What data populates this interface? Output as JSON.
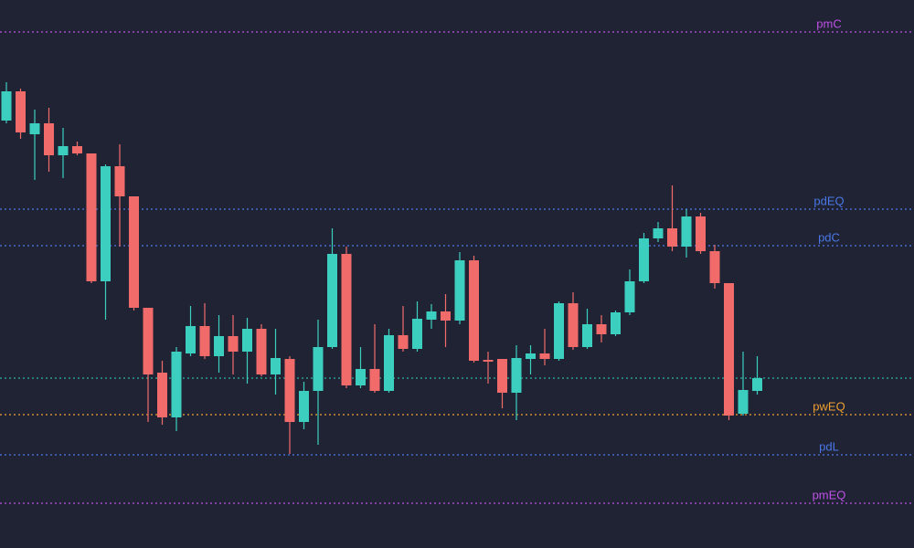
{
  "chart_data": {
    "type": "candlestick",
    "ylim": [
      0,
      600
    ],
    "up_color": "#3ccfbf",
    "down_color": "#f26b6b",
    "open": [
      468,
      500,
      453,
      465,
      430,
      440,
      432,
      292,
      418,
      385,
      263,
      192,
      143,
      213,
      243,
      210,
      232,
      215,
      240,
      190,
      207,
      138,
      172,
      220,
      322,
      178,
      196,
      172,
      233,
      218,
      250,
      259,
      249,
      315,
      206,
      207,
      170,
      207,
      213,
      207,
      268,
      220,
      245,
      234,
      258,
      292,
      339,
      350,
      330,
      363,
      325,
      290,
      147,
      172
    ],
    "high": [
      510,
      503,
      480,
      482,
      460,
      445,
      432,
      420,
      442,
      385,
      263,
      205,
      220,
      265,
      268,
      255,
      255,
      252,
      245,
      240,
      210,
      182,
      250,
      350,
      330,
      220,
      245,
      240,
      265,
      270,
      267,
      278,
      324,
      320,
      215,
      207,
      222,
      222,
      240,
      270,
      280,
      262,
      255,
      260,
      305,
      345,
      357,
      397,
      371,
      367,
      332,
      290,
      215,
      210
    ],
    "low": [
      465,
      448,
      403,
      412,
      405,
      430,
      290,
      250,
      330,
      260,
      138,
      135,
      128,
      210,
      207,
      192,
      190,
      180,
      188,
      168,
      103,
      130,
      113,
      218,
      175,
      175,
      170,
      170,
      215,
      215,
      240,
      220,
      245,
      203,
      180,
      153,
      140,
      190,
      200,
      205,
      217,
      218,
      225,
      232,
      255,
      290,
      335,
      325,
      318,
      322,
      284,
      140,
      145,
      168
    ],
    "close": [
      500,
      455,
      465,
      430,
      440,
      432,
      292,
      418,
      385,
      263,
      190,
      143,
      215,
      243,
      210,
      232,
      215,
      240,
      190,
      208,
      138,
      172,
      220,
      322,
      178,
      196,
      172,
      233,
      218,
      251,
      259,
      249,
      315,
      205,
      204,
      170,
      208,
      213,
      207,
      268,
      220,
      245,
      234,
      258,
      292,
      339,
      350,
      330,
      363,
      325,
      290,
      145,
      173,
      186
    ],
    "levels": [
      {
        "label": "pmC",
        "value": 565,
        "color": "#c050e8"
      },
      {
        "label": "pdEQ",
        "value": 371,
        "color": "#4a78e8"
      },
      {
        "label": "pdC",
        "value": 331,
        "color": "#4a78e8"
      },
      {
        "value": 186,
        "color": "#2fb3a3"
      },
      {
        "label": "pwEQ",
        "value": 146,
        "color": "#f0a030"
      },
      {
        "label": "pdL",
        "value": 102,
        "color": "#4a78e8"
      },
      {
        "label": "pmEQ",
        "value": 49,
        "color": "#c050e8"
      }
    ]
  }
}
